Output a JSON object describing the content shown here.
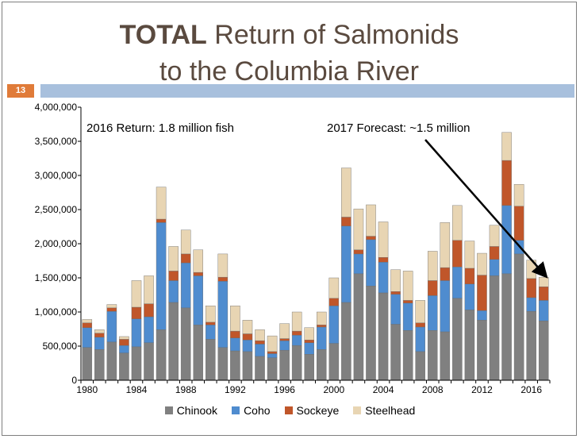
{
  "slide": {
    "title_bold": "TOTAL",
    "title_rest": " Return of Salmonids",
    "title_line2": "to the Columbia River",
    "number": "13"
  },
  "colors": {
    "chinook": "#808080",
    "coho": "#4f8ccf",
    "sockeye": "#c0562a",
    "steelhead": "#e8d5b3",
    "title": "#5a4a3f",
    "accent_bar": "#a8c0dd",
    "slide_number_bg": "#e07b39"
  },
  "chart_data": {
    "type": "bar",
    "stacked": true,
    "categories": [
      1980,
      1981,
      1982,
      1983,
      1984,
      1985,
      1986,
      1987,
      1988,
      1989,
      1990,
      1991,
      1992,
      1993,
      1994,
      1995,
      1996,
      1997,
      1998,
      1999,
      2000,
      2001,
      2002,
      2003,
      2004,
      2005,
      2006,
      2007,
      2008,
      2009,
      2010,
      2011,
      2012,
      2013,
      2014,
      2015,
      2016,
      2017
    ],
    "x_tick_labels": [
      "1980",
      "1984",
      "1988",
      "1992",
      "1996",
      "2000",
      "2004",
      "2008",
      "2012",
      "2016"
    ],
    "y_tick_labels": [
      "0",
      "500,000",
      "1,000,000",
      "1,500,000",
      "2,000,000",
      "2,500,000",
      "3,000,000",
      "3,500,000",
      "4,000,000"
    ],
    "ylim": [
      0,
      4000000
    ],
    "series": [
      {
        "name": "Chinook",
        "values": [
          480000,
          450000,
          560000,
          400000,
          490000,
          550000,
          740000,
          1140000,
          1060000,
          810000,
          600000,
          480000,
          430000,
          420000,
          350000,
          330000,
          440000,
          510000,
          380000,
          450000,
          540000,
          1140000,
          1560000,
          1380000,
          1280000,
          820000,
          730000,
          420000,
          730000,
          710000,
          1200000,
          1030000,
          880000,
          1530000,
          1560000,
          1850000,
          1010000,
          870000
        ]
      },
      {
        "name": "Coho",
        "values": [
          290000,
          180000,
          450000,
          110000,
          410000,
          380000,
          1570000,
          320000,
          660000,
          720000,
          210000,
          970000,
          190000,
          170000,
          180000,
          60000,
          140000,
          150000,
          170000,
          330000,
          550000,
          1120000,
          290000,
          680000,
          450000,
          440000,
          400000,
          360000,
          510000,
          750000,
          460000,
          380000,
          140000,
          240000,
          1000000,
          200000,
          200000,
          300000
        ]
      },
      {
        "name": "Sockeye",
        "values": [
          70000,
          60000,
          50000,
          90000,
          170000,
          190000,
          50000,
          140000,
          130000,
          50000,
          40000,
          60000,
          100000,
          90000,
          50000,
          30000,
          30000,
          60000,
          40000,
          30000,
          110000,
          130000,
          60000,
          50000,
          70000,
          40000,
          40000,
          60000,
          220000,
          190000,
          390000,
          230000,
          520000,
          190000,
          660000,
          500000,
          280000,
          200000
        ]
      },
      {
        "name": "Steelhead",
        "values": [
          50000,
          50000,
          50000,
          40000,
          390000,
          410000,
          470000,
          360000,
          350000,
          330000,
          240000,
          340000,
          370000,
          200000,
          160000,
          230000,
          220000,
          280000,
          180000,
          190000,
          300000,
          720000,
          600000,
          460000,
          520000,
          320000,
          430000,
          330000,
          430000,
          660000,
          510000,
          400000,
          320000,
          310000,
          410000,
          320000,
          270000,
          140000
        ]
      }
    ],
    "annotations": [
      {
        "text": "2016 Return: 1.8 million fish"
      },
      {
        "text": "2017 Forecast: ~1.5 million"
      }
    ],
    "legend_position": "bottom",
    "grid": false
  }
}
